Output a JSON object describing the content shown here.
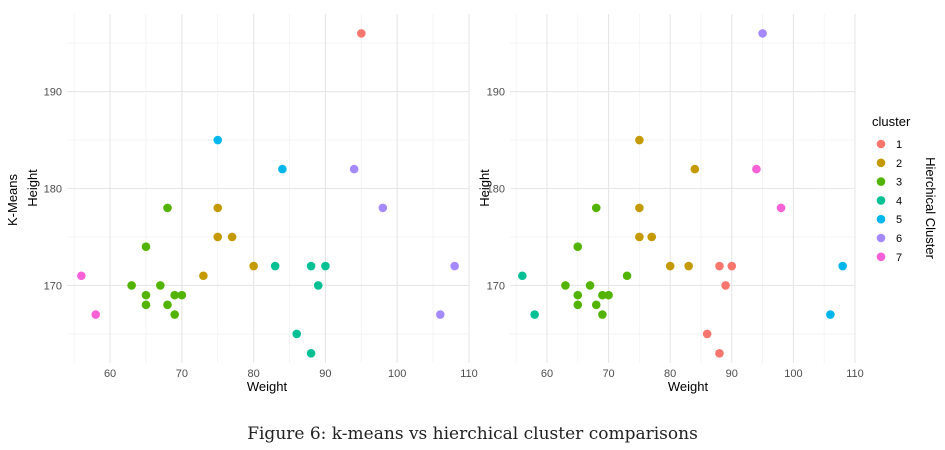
{
  "chart_data": {
    "type": "scatter",
    "caption": "Figure 6: k-means vs hierchical cluster comparisons",
    "xlabel": "Weight",
    "ylabel": "Height",
    "xlim": [
      54,
      110
    ],
    "ylim": [
      162,
      198
    ],
    "x_ticks": [
      60,
      70,
      80,
      90,
      100,
      110
    ],
    "y_ticks": [
      170,
      180,
      190
    ],
    "grid": true,
    "legend_title": "cluster",
    "legend_position": "right",
    "cluster_colors": {
      "1": "#F8766D",
      "2": "#C49A00",
      "3": "#53B400",
      "4": "#00C094",
      "5": "#00B6EB",
      "6": "#A58AFF",
      "7": "#FB61D7"
    },
    "legend": [
      {
        "label": "1",
        "color": "#F8766D"
      },
      {
        "label": "2",
        "color": "#C49A00"
      },
      {
        "label": "3",
        "color": "#53B400"
      },
      {
        "label": "4",
        "color": "#00C094"
      },
      {
        "label": "5",
        "color": "#00B6EB"
      },
      {
        "label": "6",
        "color": "#A58AFF"
      },
      {
        "label": "7",
        "color": "#FB61D7"
      }
    ],
    "panels": [
      {
        "strip_label": "K-Means",
        "points": [
          {
            "x": 95,
            "y": 196,
            "cluster": "1"
          },
          {
            "x": 75,
            "y": 178,
            "cluster": "2"
          },
          {
            "x": 75,
            "y": 175,
            "cluster": "2"
          },
          {
            "x": 77,
            "y": 175,
            "cluster": "2"
          },
          {
            "x": 80,
            "y": 172,
            "cluster": "2"
          },
          {
            "x": 73,
            "y": 171,
            "cluster": "2"
          },
          {
            "x": 68,
            "y": 178,
            "cluster": "3"
          },
          {
            "x": 65,
            "y": 174,
            "cluster": "3"
          },
          {
            "x": 63,
            "y": 170,
            "cluster": "3"
          },
          {
            "x": 67,
            "y": 170,
            "cluster": "3"
          },
          {
            "x": 65,
            "y": 169,
            "cluster": "3"
          },
          {
            "x": 69,
            "y": 169,
            "cluster": "3"
          },
          {
            "x": 70,
            "y": 169,
            "cluster": "3"
          },
          {
            "x": 65,
            "y": 168,
            "cluster": "3"
          },
          {
            "x": 68,
            "y": 168,
            "cluster": "3"
          },
          {
            "x": 69,
            "y": 167,
            "cluster": "3"
          },
          {
            "x": 83,
            "y": 172,
            "cluster": "4"
          },
          {
            "x": 88,
            "y": 172,
            "cluster": "4"
          },
          {
            "x": 90,
            "y": 172,
            "cluster": "4"
          },
          {
            "x": 89,
            "y": 170,
            "cluster": "4"
          },
          {
            "x": 86,
            "y": 165,
            "cluster": "4"
          },
          {
            "x": 88,
            "y": 163,
            "cluster": "4"
          },
          {
            "x": 75,
            "y": 185,
            "cluster": "5"
          },
          {
            "x": 84,
            "y": 182,
            "cluster": "5"
          },
          {
            "x": 94,
            "y": 182,
            "cluster": "6"
          },
          {
            "x": 98,
            "y": 178,
            "cluster": "6"
          },
          {
            "x": 108,
            "y": 172,
            "cluster": "6"
          },
          {
            "x": 106,
            "y": 167,
            "cluster": "6"
          },
          {
            "x": 56,
            "y": 171,
            "cluster": "7"
          },
          {
            "x": 58,
            "y": 167,
            "cluster": "7"
          }
        ]
      },
      {
        "strip_label": "Hierchical Cluster",
        "points": [
          {
            "x": 88,
            "y": 172,
            "cluster": "1"
          },
          {
            "x": 90,
            "y": 172,
            "cluster": "1"
          },
          {
            "x": 89,
            "y": 170,
            "cluster": "1"
          },
          {
            "x": 86,
            "y": 165,
            "cluster": "1"
          },
          {
            "x": 88,
            "y": 163,
            "cluster": "1"
          },
          {
            "x": 75,
            "y": 185,
            "cluster": "2"
          },
          {
            "x": 84,
            "y": 182,
            "cluster": "2"
          },
          {
            "x": 75,
            "y": 178,
            "cluster": "2"
          },
          {
            "x": 75,
            "y": 175,
            "cluster": "2"
          },
          {
            "x": 77,
            "y": 175,
            "cluster": "2"
          },
          {
            "x": 80,
            "y": 172,
            "cluster": "2"
          },
          {
            "x": 83,
            "y": 172,
            "cluster": "2"
          },
          {
            "x": 68,
            "y": 178,
            "cluster": "3"
          },
          {
            "x": 65,
            "y": 174,
            "cluster": "3"
          },
          {
            "x": 63,
            "y": 170,
            "cluster": "3"
          },
          {
            "x": 67,
            "y": 170,
            "cluster": "3"
          },
          {
            "x": 65,
            "y": 169,
            "cluster": "3"
          },
          {
            "x": 69,
            "y": 169,
            "cluster": "3"
          },
          {
            "x": 70,
            "y": 169,
            "cluster": "3"
          },
          {
            "x": 65,
            "y": 168,
            "cluster": "3"
          },
          {
            "x": 68,
            "y": 168,
            "cluster": "3"
          },
          {
            "x": 69,
            "y": 167,
            "cluster": "3"
          },
          {
            "x": 73,
            "y": 171,
            "cluster": "3"
          },
          {
            "x": 56,
            "y": 171,
            "cluster": "4"
          },
          {
            "x": 58,
            "y": 167,
            "cluster": "4"
          },
          {
            "x": 108,
            "y": 172,
            "cluster": "5"
          },
          {
            "x": 106,
            "y": 167,
            "cluster": "5"
          },
          {
            "x": 95,
            "y": 196,
            "cluster": "6"
          },
          {
            "x": 94,
            "y": 182,
            "cluster": "7"
          },
          {
            "x": 98,
            "y": 178,
            "cluster": "7"
          }
        ]
      }
    ]
  }
}
